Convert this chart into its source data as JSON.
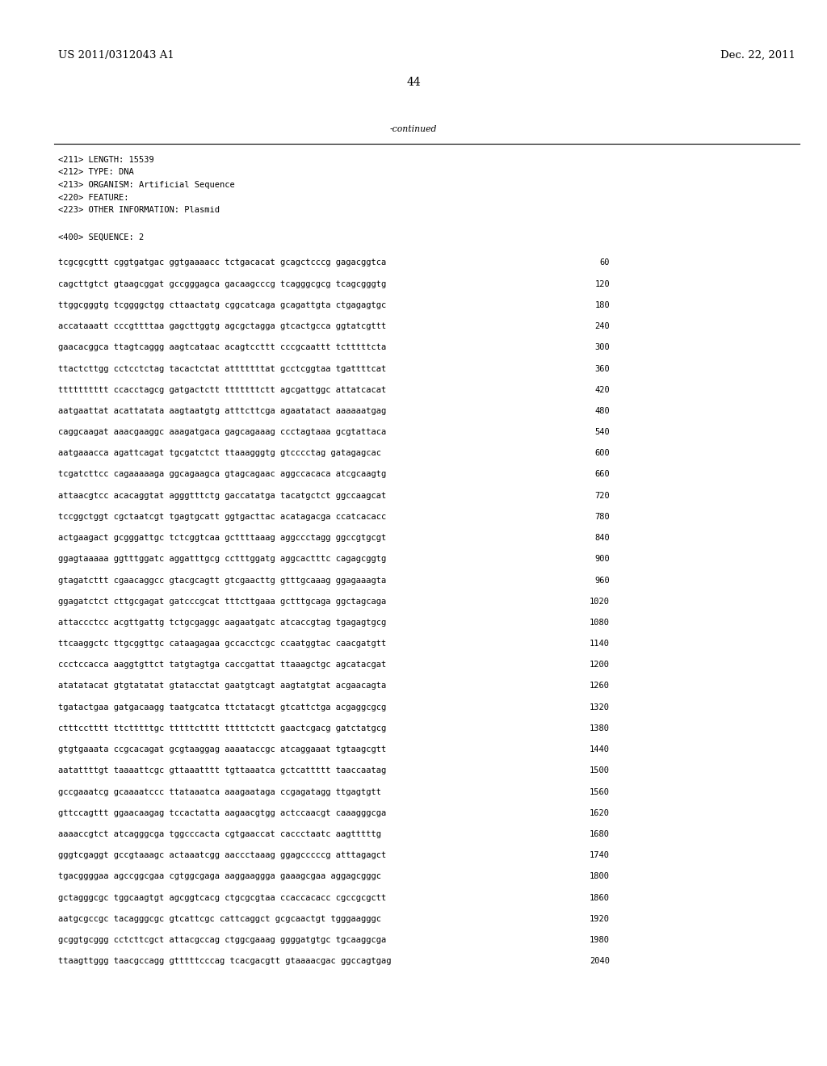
{
  "header_left": "US 2011/0312043 A1",
  "header_right": "Dec. 22, 2011",
  "page_number": "44",
  "continued_text": "-continued",
  "metadata_lines": [
    "<211> LENGTH: 15539",
    "<212> TYPE: DNA",
    "<213> ORGANISM: Artificial Sequence",
    "<220> FEATURE:",
    "<223> OTHER INFORMATION: Plasmid"
  ],
  "sequence_label": "<400> SEQUENCE: 2",
  "sequence_lines": [
    [
      "tcgcgcgttt cggtgatgac ggtgaaaacc tctgacacat gcagctcccg gagacggtca",
      "60"
    ],
    [
      "cagcttgtct gtaagcggat gccgggagca gacaagcccg tcagggcgcg tcagcgggtg",
      "120"
    ],
    [
      "ttggcgggtg tcggggctgg cttaactatg cggcatcaga gcagattgta ctgagagtgc",
      "180"
    ],
    [
      "accataaatt cccgttttaa gagcttggtg agcgctagga gtcactgcca ggtatcgttt",
      "240"
    ],
    [
      "gaacacggca ttagtcaggg aagtcataac acagtccttt cccgcaattt tctttttcta",
      "300"
    ],
    [
      "ttactcttgg cctcctctag tacactctat atttttttat gcctcggtaa tgattttcat",
      "360"
    ],
    [
      "tttttttttt ccacctagcg gatgactctt tttttttctt agcgattggc attatcacat",
      "420"
    ],
    [
      "aatgaattat acattatata aagtaatgtg atttcttcga agaatatact aaaaaatgag",
      "480"
    ],
    [
      "caggcaagat aaacgaaggc aaagatgaca gagcagaaag ccctagtaaa gcgtattaca",
      "540"
    ],
    [
      "aatgaaacca agattcagat tgcgatctct ttaaagggtg gtcccctag gatagagcac",
      "600"
    ],
    [
      "tcgatcttcc cagaaaaaga ggcagaagca gtagcagaac aggccacaca atcgcaagtg",
      "660"
    ],
    [
      "attaacgtcc acacaggtat agggtttctg gaccatatga tacatgctct ggccaagcat",
      "720"
    ],
    [
      "tccggctggt cgctaatcgt tgagtgcatt ggtgacttac acatagacga ccatcacacc",
      "780"
    ],
    [
      "actgaagact gcgggattgc tctcggtcaa gcttttaaag aggccctagg ggccgtgcgt",
      "840"
    ],
    [
      "ggagtaaaaa ggtttggatc aggatttgcg cctttggatg aggcactttc cagagcggtg",
      "900"
    ],
    [
      "gtagatcttt cgaacaggcc gtacgcagtt gtcgaacttg gtttgcaaag ggagaaagta",
      "960"
    ],
    [
      "ggagatctct cttgcgagat gatcccgcat tttcttgaaa gctttgcaga ggctagcaga",
      "1020"
    ],
    [
      "attaccctcc acgttgattg tctgcgaggc aagaatgatc atcaccgtag tgagagtgcg",
      "1080"
    ],
    [
      "ttcaaggctc ttgcggttgc cataagagaa gccacctcgc ccaatggtac caacgatgtt",
      "1140"
    ],
    [
      "ccctccacca aaggtgttct tatgtagtga caccgattat ttaaagctgc agcatacgat",
      "1200"
    ],
    [
      "atatatacat gtgtatatat gtatacctat gaatgtcagt aagtatgtat acgaacagta",
      "1260"
    ],
    [
      "tgatactgaa gatgacaagg taatgcatca ttctatacgt gtcattctga acgaggcgcg",
      "1320"
    ],
    [
      "ctttcctttt ttctttttgc tttttctttt tttttctctt gaactcgacg gatctatgcg",
      "1380"
    ],
    [
      "gtgtgaaata ccgcacagat gcgtaaggag aaaataccgc atcaggaaat tgtaagcgtt",
      "1440"
    ],
    [
      "aatattttgt taaaattcgc gttaaatttt tgttaaatca gctcattttt taaccaatag",
      "1500"
    ],
    [
      "gccgaaatcg gcaaaatccc ttataaatca aaagaataga ccgagatagg ttgagtgtt",
      "1560"
    ],
    [
      "gttccagttt ggaacaagag tccactatta aagaacgtgg actccaacgt caaagggcga",
      "1620"
    ],
    [
      "aaaaccgtct atcagggcga tggcccacta cgtgaaccat caccctaatc aagtttttg",
      "1680"
    ],
    [
      "gggtcgaggt gccgtaaagc actaaatcgg aaccctaaag ggagcccccg atttagagct",
      "1740"
    ],
    [
      "tgacggggaa agccggcgaa cgtggcgaga aaggaaggga gaaagcgaa aggagcgggc",
      "1800"
    ],
    [
      "gctagggcgc tggcaagtgt agcggtcacg ctgcgcgtaa ccaccacacc cgccgcgctt",
      "1860"
    ],
    [
      "aatgcgccgc tacagggcgc gtcattcgc cattcaggct gcgcaactgt tgggaagggc",
      "1920"
    ],
    [
      "gcggtgcggg cctcttcgct attacgccag ctggcgaaag ggggatgtgc tgcaaggcga",
      "1980"
    ],
    [
      "ttaagttggg taacgccagg gtttttcccag tcacgacgtt gtaaaacgac ggccagtgag",
      "2040"
    ]
  ],
  "bg_color": "#ffffff",
  "text_color": "#000000",
  "font_size_header": 9.5,
  "font_size_body": 7.8,
  "font_size_page_num": 10.0,
  "mono_font_size": 7.5
}
